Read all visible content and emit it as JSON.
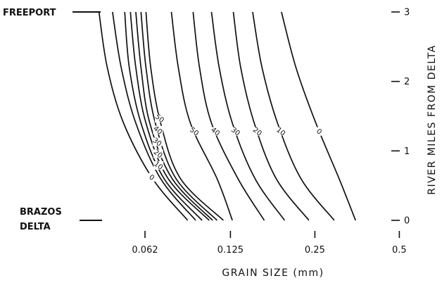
{
  "chart_data": {
    "type": "line",
    "xlabel": "GRAIN  SIZE  (mm)",
    "ylabel": "RIVER MILES FROM DELTA",
    "x_scale": "log2",
    "x_ticks": [
      0.062,
      0.125,
      0.25,
      0.5
    ],
    "x_tick_labels": [
      "0.062",
      "0.125",
      "0.25",
      "0.5"
    ],
    "y_ticks": [
      0,
      1,
      2,
      3
    ],
    "y_tick_labels": [
      "0",
      "1",
      "2",
      "3"
    ],
    "xlim": [
      0.04,
      0.5
    ],
    "ylim": [
      0,
      3
    ],
    "place_labels": {
      "top": "FREEPORT",
      "bottom_line1": "BRAZOS",
      "bottom_line2": "DELTA"
    },
    "series": [
      {
        "group": "left",
        "label": "0",
        "points": [
          [
            0.0425,
            3
          ],
          [
            0.0455,
            2.2
          ],
          [
            0.052,
            1.4
          ],
          [
            0.066,
            0.6
          ],
          [
            0.088,
            0
          ]
        ]
      },
      {
        "group": "left",
        "label": "",
        "points": [
          [
            0.0475,
            3
          ],
          [
            0.051,
            2.2
          ],
          [
            0.0575,
            1.4
          ],
          [
            0.0705,
            0.6
          ],
          [
            0.094,
            0
          ]
        ]
      },
      {
        "group": "left",
        "label": "10",
        "points": [
          [
            0.0525,
            3
          ],
          [
            0.0545,
            2.2
          ],
          [
            0.06,
            1.4
          ],
          [
            0.0725,
            0.6
          ],
          [
            0.099,
            0
          ]
        ]
      },
      {
        "group": "left",
        "label": "20",
        "points": [
          [
            0.055,
            3
          ],
          [
            0.0575,
            2.2
          ],
          [
            0.0625,
            1.4
          ],
          [
            0.075,
            0.6
          ],
          [
            0.105,
            0
          ]
        ]
      },
      {
        "group": "left",
        "label": "30",
        "points": [
          [
            0.0575,
            3
          ],
          [
            0.06,
            2.2
          ],
          [
            0.0645,
            1.4
          ],
          [
            0.0775,
            0.6
          ],
          [
            0.108,
            0
          ]
        ]
      },
      {
        "group": "left",
        "label": "40",
        "points": [
          [
            0.06,
            3
          ],
          [
            0.0625,
            2.2
          ],
          [
            0.0675,
            1.4
          ],
          [
            0.08,
            0.6
          ],
          [
            0.112,
            0
          ]
        ]
      },
      {
        "group": "left",
        "label": "50",
        "points": [
          [
            0.0625,
            3
          ],
          [
            0.065,
            2.2
          ],
          [
            0.0705,
            1.4
          ],
          [
            0.083,
            0.6
          ],
          [
            0.118,
            0
          ]
        ]
      },
      {
        "group": "right",
        "label": "50",
        "points": [
          [
            0.077,
            3
          ],
          [
            0.0815,
            2.2
          ],
          [
            0.09,
            1.4
          ],
          [
            0.112,
            0.6
          ],
          [
            0.127,
            0
          ]
        ]
      },
      {
        "group": "right",
        "label": "40",
        "points": [
          [
            0.092,
            3
          ],
          [
            0.097,
            2.2
          ],
          [
            0.107,
            1.4
          ],
          [
            0.133,
            0.6
          ],
          [
            0.165,
            0
          ]
        ]
      },
      {
        "group": "right",
        "label": "30",
        "points": [
          [
            0.107,
            3
          ],
          [
            0.114,
            2.2
          ],
          [
            0.127,
            1.4
          ],
          [
            0.153,
            0.6
          ],
          [
            0.195,
            0
          ]
        ]
      },
      {
        "group": "right",
        "label": "20",
        "points": [
          [
            0.128,
            3
          ],
          [
            0.136,
            2.2
          ],
          [
            0.152,
            1.4
          ],
          [
            0.182,
            0.6
          ],
          [
            0.238,
            0
          ]
        ]
      },
      {
        "group": "right",
        "label": "10",
        "points": [
          [
            0.15,
            3
          ],
          [
            0.162,
            2.2
          ],
          [
            0.184,
            1.4
          ],
          [
            0.223,
            0.6
          ],
          [
            0.293,
            0
          ]
        ]
      },
      {
        "group": "right",
        "label": "0",
        "points": [
          [
            0.19,
            3
          ],
          [
            0.214,
            2.2
          ],
          [
            0.252,
            1.4
          ],
          [
            0.305,
            0.6
          ],
          [
            0.349,
            0
          ]
        ]
      }
    ],
    "grid": false,
    "legend": "none"
  }
}
